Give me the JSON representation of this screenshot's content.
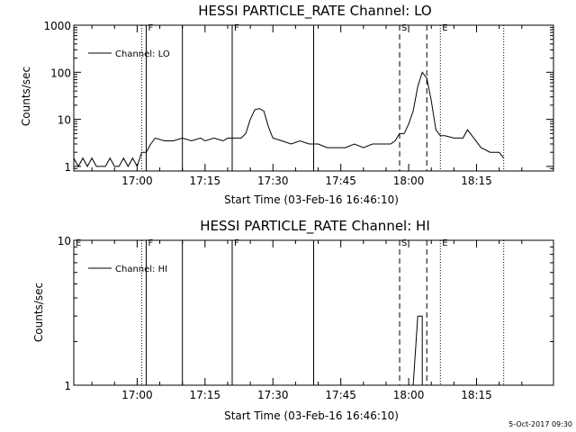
{
  "footer": {
    "timestamp": "5-Oct-2017 09:30"
  },
  "chart_data": [
    {
      "type": "line",
      "title": "HESSI PARTICLE_RATE Channel: LO",
      "xlabel": "Start Time (03-Feb-16 16:46:10)",
      "ylabel": "Counts/sec",
      "yscale": "log",
      "xlim": [
        "16:46",
        "18:32"
      ],
      "ylim": [
        0.8,
        1000
      ],
      "x_ticks": [
        "17:00",
        "17:15",
        "17:30",
        "17:45",
        "18:00",
        "18:15"
      ],
      "y_ticks": [
        "1",
        "10",
        "100",
        "1000"
      ],
      "legend": {
        "label": "Channel: LO",
        "position": "top-left"
      },
      "events": [
        {
          "time": "17:01",
          "style": "dotted"
        },
        {
          "time": "17:02",
          "style": "solid",
          "label": "F"
        },
        {
          "time": "17:10",
          "style": "solid"
        },
        {
          "time": "17:21",
          "style": "solid",
          "label": "F"
        },
        {
          "time": "17:39",
          "style": "solid"
        },
        {
          "time": "17:58",
          "style": "dashed",
          "label": "S"
        },
        {
          "time": "18:04",
          "style": "dashed"
        },
        {
          "time": "18:07",
          "style": "dotted",
          "label": "E"
        },
        {
          "time": "18:21",
          "style": "dotted"
        }
      ],
      "series": [
        {
          "x": [
            "16:46",
            "16:47",
            "16:48",
            "16:49",
            "16:50",
            "16:51",
            "16:52",
            "16:53",
            "16:54",
            "16:55",
            "16:56",
            "16:57",
            "16:58",
            "16:59",
            "17:00",
            "17:01",
            "17:02",
            "17:03",
            "17:04",
            "17:06",
            "17:08",
            "17:10",
            "17:12",
            "17:14",
            "17:15",
            "17:17",
            "17:19",
            "17:20",
            "17:22",
            "17:23",
            "17:24",
            "17:25",
            "17:26",
            "17:27",
            "17:28",
            "17:29",
            "17:30",
            "17:32",
            "17:34",
            "17:36",
            "17:38",
            "17:40",
            "17:42",
            "17:44",
            "17:46",
            "17:48",
            "17:50",
            "17:52",
            "17:54",
            "17:56",
            "17:57",
            "17:58",
            "17:59",
            "18:00",
            "18:01",
            "18:02",
            "18:03",
            "18:04",
            "18:05",
            "18:06",
            "18:07",
            "18:08",
            "18:10",
            "18:12",
            "18:13",
            "18:14",
            "18:16",
            "18:18",
            "18:20",
            "18:21"
          ],
          "y": [
            1.5,
            1,
            1.5,
            1,
            1.5,
            1,
            1,
            1,
            1.5,
            1,
            1,
            1.5,
            1,
            1.5,
            1,
            2,
            2,
            3,
            4,
            3.5,
            3.5,
            4,
            3.5,
            4,
            3.5,
            4,
            3.5,
            4,
            4,
            4,
            5,
            10,
            16,
            17,
            15,
            7,
            4,
            3.5,
            3,
            3.5,
            3,
            3,
            2.5,
            2.5,
            2.5,
            3,
            2.5,
            3,
            3,
            3,
            3.5,
            5,
            5,
            8,
            15,
            50,
            100,
            75,
            25,
            6,
            4.5,
            4.5,
            4,
            4,
            6,
            4.5,
            2.5,
            2,
            2,
            1.5
          ]
        }
      ]
    },
    {
      "type": "line",
      "title": "HESSI PARTICLE_RATE Channel: HI",
      "xlabel": "Start Time (03-Feb-16 16:46:10)",
      "ylabel": "Counts/sec",
      "yscale": "log",
      "xlim": [
        "16:46",
        "18:32"
      ],
      "ylim": [
        1,
        10
      ],
      "x_ticks": [
        "17:00",
        "17:15",
        "17:30",
        "17:45",
        "18:00",
        "18:15"
      ],
      "y_ticks": [
        "1",
        "10"
      ],
      "legend": {
        "label": "Channel: HI",
        "position": "top-left"
      },
      "events": [
        {
          "time": "16:46",
          "style": "none",
          "label": "E"
        },
        {
          "time": "17:01",
          "style": "dotted"
        },
        {
          "time": "17:02",
          "style": "solid",
          "label": "F"
        },
        {
          "time": "17:10",
          "style": "solid"
        },
        {
          "time": "17:21",
          "style": "solid",
          "label": "F"
        },
        {
          "time": "17:39",
          "style": "solid"
        },
        {
          "time": "17:58",
          "style": "dashed",
          "label": "S"
        },
        {
          "time": "18:04",
          "style": "dashed"
        },
        {
          "time": "18:07",
          "style": "dotted",
          "label": "E"
        },
        {
          "time": "18:21",
          "style": "dotted"
        }
      ],
      "series": [
        {
          "x": [
            "18:01",
            "18:02",
            "18:03",
            "18:03"
          ],
          "y": [
            1,
            3,
            3,
            1
          ]
        }
      ]
    }
  ]
}
